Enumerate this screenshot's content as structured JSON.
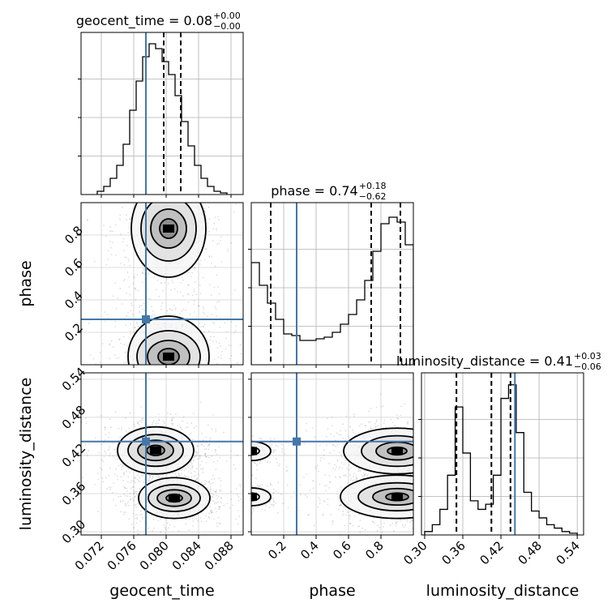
{
  "chart_data": {
    "type": "corner",
    "parameters": [
      "geocent_time",
      "phase",
      "luminosity_distance"
    ],
    "truth_color": "#4477aa",
    "axes": {
      "geocent_time": {
        "label": "geocent_time",
        "range": [
          0.0695,
          0.0895
        ],
        "ticks": [
          "0.072",
          "0.076",
          "0.080",
          "0.084",
          "0.088"
        ],
        "tick_values": [
          0.072,
          0.076,
          0.08,
          0.084,
          0.088
        ]
      },
      "phase": {
        "label": "phase",
        "range": [
          0.0,
          1.0
        ],
        "ticks": [
          "0.2",
          "0.4",
          "0.6",
          "0.8"
        ],
        "tick_values": [
          0.2,
          0.4,
          0.6,
          0.8
        ]
      },
      "luminosity_distance": {
        "label": "luminosity_distance",
        "range": [
          0.295,
          0.55
        ],
        "ticks": [
          "0.30",
          "0.36",
          "0.42",
          "0.48",
          "0.54"
        ],
        "tick_values": [
          0.3,
          0.36,
          0.42,
          0.48,
          0.54
        ]
      }
    },
    "truths": {
      "geocent_time": 0.0775,
      "phase": 0.28,
      "luminosity_distance": 0.442
    },
    "titles": [
      {
        "param": "geocent_time",
        "text": "geocent_time = 0.08",
        "plus": "+0.00",
        "minus": "−0.00"
      },
      {
        "param": "phase",
        "text": "phase = 0.74",
        "plus": "+0.18",
        "minus": "−0.62"
      },
      {
        "param": "luminosity_distance",
        "text": "luminosity_distance = 0.41",
        "plus": "+0.03",
        "minus": "−0.06"
      }
    ],
    "quantiles": {
      "geocent_time": [
        0.0775,
        0.0797,
        0.0818
      ],
      "phase": [
        0.12,
        0.74,
        0.92
      ],
      "luminosity_distance": [
        0.35,
        0.405,
        0.435
      ]
    },
    "hist_1d": {
      "geocent_time": {
        "edges": [
          0.0715,
          0.0723,
          0.0731,
          0.0739,
          0.0747,
          0.0755,
          0.0763,
          0.0771,
          0.0779,
          0.0787,
          0.0795,
          0.0803,
          0.0811,
          0.0819,
          0.0827,
          0.0835,
          0.0843,
          0.0851,
          0.0859,
          0.0867,
          0.0875
        ],
        "counts": [
          2,
          5,
          10,
          18,
          31,
          52,
          70,
          85,
          93,
          90,
          82,
          74,
          61,
          45,
          30,
          18,
          10,
          5,
          2,
          1
        ],
        "ymax": 100
      },
      "phase": {
        "edges": [
          0.0,
          0.05,
          0.1,
          0.15,
          0.2,
          0.25,
          0.3,
          0.35,
          0.4,
          0.45,
          0.5,
          0.55,
          0.6,
          0.65,
          0.7,
          0.75,
          0.8,
          0.85,
          0.9,
          0.95,
          1.0
        ],
        "counts": [
          63,
          49,
          38,
          28,
          19,
          18,
          15,
          15,
          16,
          17,
          20,
          25,
          31,
          40,
          52,
          70,
          87,
          91,
          88,
          74
        ],
        "ymax": 100
      },
      "luminosity_distance": {
        "edges": [
          0.3,
          0.312,
          0.324,
          0.336,
          0.348,
          0.36,
          0.372,
          0.384,
          0.396,
          0.408,
          0.42,
          0.432,
          0.444,
          0.456,
          0.468,
          0.48,
          0.492,
          0.504,
          0.516,
          0.528,
          0.54
        ],
        "counts": [
          2,
          6,
          15,
          35,
          75,
          48,
          20,
          15,
          18,
          35,
          80,
          88,
          60,
          25,
          14,
          10,
          6,
          4,
          2,
          1
        ],
        "ymax": 95
      }
    },
    "contours_2d": [
      {
        "x": "geocent_time",
        "y": "phase",
        "blobs": [
          {
            "cx": 0.0803,
            "cy": 0.84,
            "levels": [
              [
                0.0011,
                0.06
              ],
              [
                0.0022,
                0.12
              ],
              [
                0.0034,
                0.2
              ],
              [
                0.0046,
                0.3
              ]
            ]
          },
          {
            "cx": 0.0803,
            "cy": 0.05,
            "levels": [
              [
                0.0013,
                0.05
              ],
              [
                0.0026,
                0.1
              ],
              [
                0.0039,
                0.16
              ],
              [
                0.005,
                0.25
              ]
            ]
          }
        ]
      },
      {
        "x": "geocent_time",
        "y": "luminosity_distance",
        "blobs": [
          {
            "cx": 0.0787,
            "cy": 0.428,
            "levels": [
              [
                0.0011,
                0.008
              ],
              [
                0.0022,
                0.016
              ],
              [
                0.0034,
                0.025
              ],
              [
                0.0047,
                0.037
              ]
            ]
          },
          {
            "cx": 0.081,
            "cy": 0.353,
            "levels": [
              [
                0.001,
                0.006
              ],
              [
                0.0021,
                0.013
              ],
              [
                0.0032,
                0.021
              ],
              [
                0.0044,
                0.032
              ]
            ]
          }
        ]
      },
      {
        "x": "phase",
        "y": "luminosity_distance",
        "blobs": [
          {
            "cx": 0.9,
            "cy": 0.427,
            "levels": [
              [
                0.06,
                0.006
              ],
              [
                0.13,
                0.014
              ],
              [
                0.22,
                0.024
              ],
              [
                0.33,
                0.036
              ]
            ]
          },
          {
            "cx": 0.9,
            "cy": 0.355,
            "levels": [
              [
                0.07,
                0.006
              ],
              [
                0.15,
                0.013
              ],
              [
                0.24,
                0.022
              ],
              [
                0.35,
                0.034
              ]
            ]
          },
          {
            "cx": 0.0,
            "cy": 0.427,
            "levels": [
              [
                0.05,
                0.006
              ],
              [
                0.12,
                0.015
              ]
            ]
          },
          {
            "cx": 0.0,
            "cy": 0.355,
            "levels": [
              [
                0.05,
                0.006
              ],
              [
                0.12,
                0.014
              ]
            ]
          }
        ]
      }
    ],
    "grid": true
  }
}
